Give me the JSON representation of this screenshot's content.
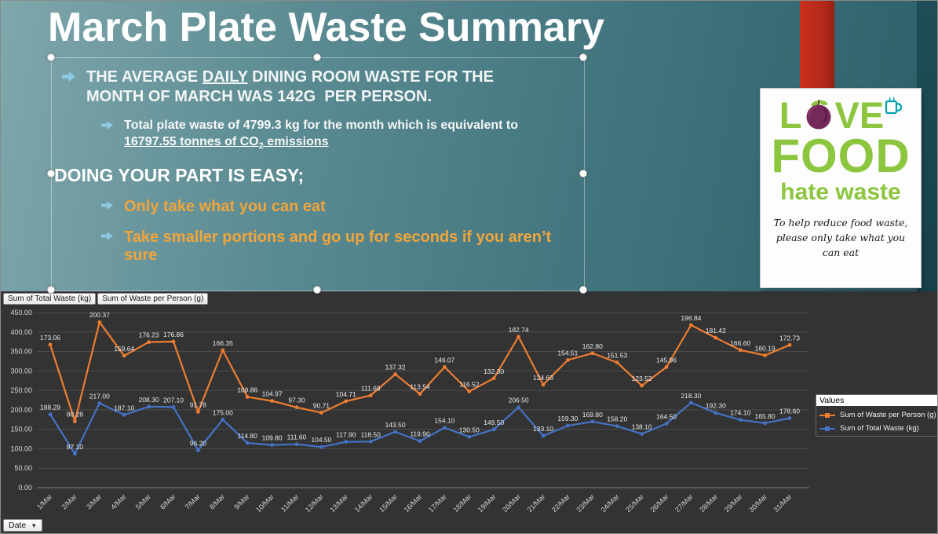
{
  "slide": {
    "title": "March Plate Waste Summary",
    "bullet1": {
      "pre": "THE AVERAGE ",
      "underline": "DAILY",
      "post": " DINING ROOM WASTE FOR THE MONTH OF MARCH WAS 142G  PER PERSON."
    },
    "sub_bullet1": {
      "pre": "Total plate waste of 4799.3 kg for the month which is equivalent to ",
      "underline_main": "16797.55 tonnes of CO",
      "subscript": "2",
      "underline_tail": " emissions"
    },
    "bullet2": "DOING YOUR PART IS EASY;",
    "tip1": "Only take what you can eat",
    "tip2": "Take smaller portions and go up for seconds if you aren’t sure"
  },
  "logo": {
    "word1_start": "L",
    "word1_end": "VE",
    "word2": "FOOD",
    "word3": "hate waste",
    "tagline": "To help reduce food waste, please only take what you can eat"
  },
  "chart": {
    "field_buttons": [
      "Sum of Total Waste (kg)",
      "Sum of Waste per Person (g)"
    ],
    "axis_field_button": "Date",
    "legend_title": "Values"
  },
  "chart_data": {
    "type": "line",
    "x": [
      "1/Mar",
      "2/Mar",
      "3/Mar",
      "4/Mar",
      "5/Mar",
      "6/Mar",
      "7/Mar",
      "8/Mar",
      "9/Mar",
      "10/Mar",
      "11/Mar",
      "12/Mar",
      "13/Mar",
      "14/Mar",
      "15/Mar",
      "16/Mar",
      "17/Mar",
      "18/Mar",
      "19/Mar",
      "20/Mar",
      "21/Mar",
      "22/Mar",
      "23/Mar",
      "24/Mar",
      "25/Mar",
      "26/Mar",
      "27/Mar",
      "28/Mar",
      "29/Mar",
      "30/Mar",
      "31/Mar"
    ],
    "series": [
      {
        "name": "Sum of Waste per Person (g)",
        "color": "#ED7D31",
        "axis": "secondary",
        "values": [
          173.06,
          80.28,
          200.37,
          159.64,
          176.23,
          176.86,
          91.78,
          166.35,
          109.86,
          104.97,
          97.3,
          90.71,
          104.71,
          111.69,
          137.32,
          113.54,
          146.07,
          116.52,
          132.3,
          182.74,
          124.63,
          154.51,
          162.8,
          151.53,
          123.52,
          145.96,
          196.84,
          181.42,
          166.6,
          160.19,
          172.73
        ]
      },
      {
        "name": "Sum of Total Waste (kg)",
        "color": "#4472C4",
        "axis": "primary",
        "values": [
          188.29,
          87.1,
          217.0,
          187.1,
          208.3,
          207.1,
          96.2,
          175.0,
          114.8,
          109.8,
          111.6,
          104.5,
          117.9,
          118.5,
          143.5,
          119.9,
          154.1,
          130.5,
          149.5,
          206.5,
          133.1,
          159.3,
          169.8,
          158.2,
          138.1,
          164.5,
          218.3,
          192.3,
          174.1,
          165.8,
          178.6
        ]
      }
    ],
    "ylim": [
      0,
      450
    ],
    "ytick_step": 50,
    "secondary_ylim": [
      0,
      212
    ],
    "grid": true,
    "legend_position": "right",
    "background": "#333333",
    "title": ""
  }
}
